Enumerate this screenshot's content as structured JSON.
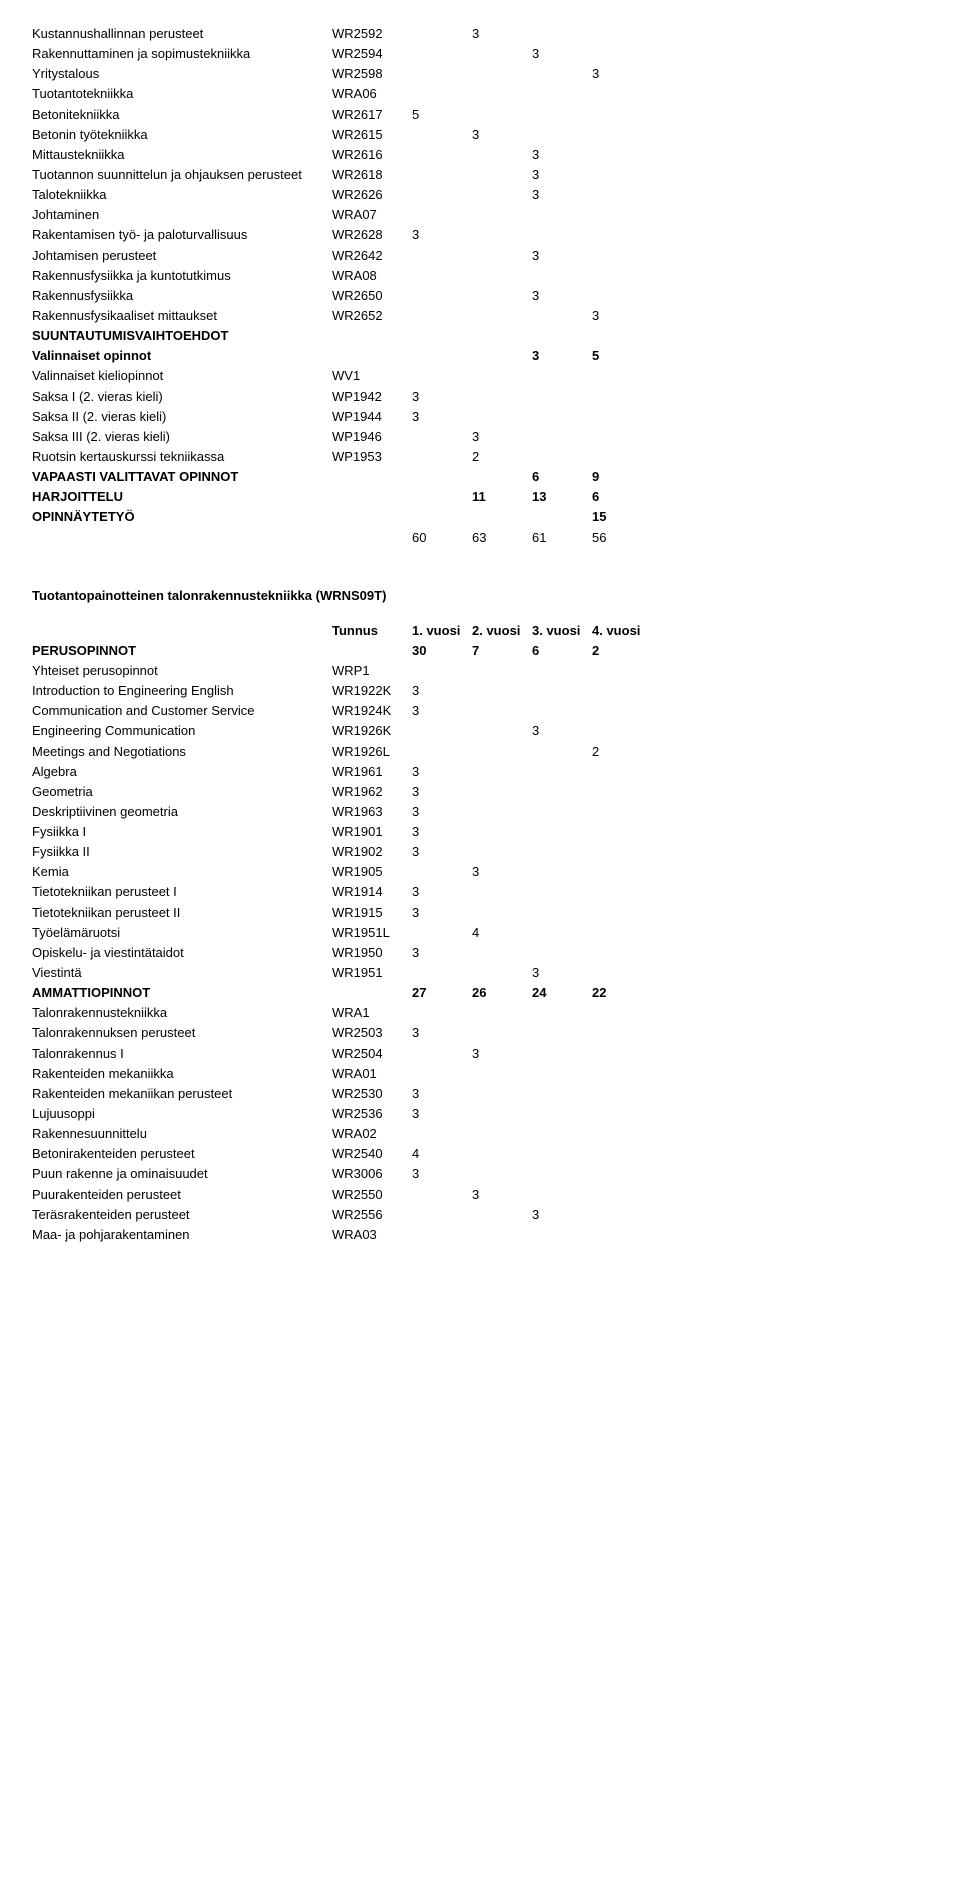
{
  "table1": {
    "rows": [
      {
        "label": "Kustannushallinnan perusteet",
        "code": "WR2592",
        "v1": "",
        "v2": "3",
        "v3": "",
        "v4": "",
        "bold": false
      },
      {
        "label": "Rakennuttaminen ja sopimustekniikka",
        "code": "WR2594",
        "v1": "",
        "v2": "",
        "v3": "3",
        "v4": "",
        "bold": false
      },
      {
        "label": "Yritystalous",
        "code": "WR2598",
        "v1": "",
        "v2": "",
        "v3": "",
        "v4": "3",
        "bold": false
      },
      {
        "label": "Tuotantotekniikka",
        "code": "WRA06",
        "v1": "",
        "v2": "",
        "v3": "",
        "v4": "",
        "bold": false
      },
      {
        "label": "Betonitekniikka",
        "code": "WR2617",
        "v1": "5",
        "v2": "",
        "v3": "",
        "v4": "",
        "bold": false
      },
      {
        "label": "Betonin työtekniikka",
        "code": "WR2615",
        "v1": "",
        "v2": "3",
        "v3": "",
        "v4": "",
        "bold": false
      },
      {
        "label": "Mittaustekniikka",
        "code": "WR2616",
        "v1": "",
        "v2": "",
        "v3": "3",
        "v4": "",
        "bold": false
      },
      {
        "label": "Tuotannon suunnittelun ja ohjauksen perusteet",
        "code": "WR2618",
        "v1": "",
        "v2": "",
        "v3": "3",
        "v4": "",
        "bold": false
      },
      {
        "label": "Talotekniikka",
        "code": "WR2626",
        "v1": "",
        "v2": "",
        "v3": "3",
        "v4": "",
        "bold": false
      },
      {
        "label": "Johtaminen",
        "code": "WRA07",
        "v1": "",
        "v2": "",
        "v3": "",
        "v4": "",
        "bold": false
      },
      {
        "label": "Rakentamisen työ- ja paloturvallisuus",
        "code": "WR2628",
        "v1": "3",
        "v2": "",
        "v3": "",
        "v4": "",
        "bold": false
      },
      {
        "label": "Johtamisen perusteet",
        "code": "WR2642",
        "v1": "",
        "v2": "",
        "v3": "3",
        "v4": "",
        "bold": false
      },
      {
        "label": "Rakennusfysiikka ja kuntotutkimus",
        "code": "WRA08",
        "v1": "",
        "v2": "",
        "v3": "",
        "v4": "",
        "bold": false
      },
      {
        "label": "Rakennusfysiikka",
        "code": "WR2650",
        "v1": "",
        "v2": "",
        "v3": "3",
        "v4": "",
        "bold": false
      },
      {
        "label": "Rakennusfysikaaliset mittaukset",
        "code": "WR2652",
        "v1": "",
        "v2": "",
        "v3": "",
        "v4": "3",
        "bold": false
      },
      {
        "label": "SUUNTAUTUMISVAIHTOEHDOT",
        "code": "",
        "v1": "",
        "v2": "",
        "v3": "",
        "v4": "",
        "bold": true
      },
      {
        "label": "Valinnaiset opinnot",
        "code": "",
        "v1": "",
        "v2": "",
        "v3": "3",
        "v4": "5",
        "bold": true
      },
      {
        "label": "Valinnaiset kieliopinnot",
        "code": "WV1",
        "v1": "",
        "v2": "",
        "v3": "",
        "v4": "",
        "bold": false
      },
      {
        "label": "Saksa I (2. vieras kieli)",
        "code": "WP1942",
        "v1": "3",
        "v2": "",
        "v3": "",
        "v4": "",
        "bold": false
      },
      {
        "label": "Saksa II (2. vieras kieli)",
        "code": "WP1944",
        "v1": "3",
        "v2": "",
        "v3": "",
        "v4": "",
        "bold": false
      },
      {
        "label": "Saksa III (2. vieras kieli)",
        "code": "WP1946",
        "v1": "",
        "v2": "3",
        "v3": "",
        "v4": "",
        "bold": false
      },
      {
        "label": "Ruotsin kertauskurssi tekniikassa",
        "code": "WP1953",
        "v1": "",
        "v2": "2",
        "v3": "",
        "v4": "",
        "bold": false
      },
      {
        "label": "VAPAASTI VALITTAVAT OPINNOT",
        "code": "",
        "v1": "",
        "v2": "",
        "v3": "6",
        "v4": "9",
        "bold": true
      },
      {
        "label": "HARJOITTELU",
        "code": "",
        "v1": "",
        "v2": "11",
        "v3": "13",
        "v4": "6",
        "bold": true
      },
      {
        "label": "OPINNÄYTETYÖ",
        "code": "",
        "v1": "",
        "v2": "",
        "v3": "",
        "v4": "15",
        "bold": true
      }
    ],
    "totals": {
      "v1": "60",
      "v2": "63",
      "v3": "61",
      "v4": "56"
    }
  },
  "section2": {
    "title": "Tuotantopainotteinen talonrakennustekniikka (WRNS09T)",
    "header": {
      "code": "Tunnus",
      "v1": "1. vuosi",
      "v2": "2. vuosi",
      "v3": "3. vuosi",
      "v4": "4. vuosi"
    },
    "rows": [
      {
        "label": "PERUSOPINNOT",
        "code": "",
        "v1": "30",
        "v2": "7",
        "v3": "6",
        "v4": "2",
        "bold": true
      },
      {
        "label": "Yhteiset perusopinnot",
        "code": "WRP1",
        "v1": "",
        "v2": "",
        "v3": "",
        "v4": "",
        "bold": false
      },
      {
        "label": "Introduction to Engineering English",
        "code": "WR1922K",
        "v1": "3",
        "v2": "",
        "v3": "",
        "v4": "",
        "bold": false
      },
      {
        "label": "Communication and Customer Service",
        "code": "WR1924K",
        "v1": "3",
        "v2": "",
        "v3": "",
        "v4": "",
        "bold": false
      },
      {
        "label": "Engineering Communication",
        "code": "WR1926K",
        "v1": "",
        "v2": "",
        "v3": "3",
        "v4": "",
        "bold": false
      },
      {
        "label": "Meetings and Negotiations",
        "code": "WR1926L",
        "v1": "",
        "v2": "",
        "v3": "",
        "v4": "2",
        "bold": false
      },
      {
        "label": "Algebra",
        "code": "WR1961",
        "v1": "3",
        "v2": "",
        "v3": "",
        "v4": "",
        "bold": false
      },
      {
        "label": "Geometria",
        "code": "WR1962",
        "v1": "3",
        "v2": "",
        "v3": "",
        "v4": "",
        "bold": false
      },
      {
        "label": "Deskriptiivinen geometria",
        "code": "WR1963",
        "v1": "3",
        "v2": "",
        "v3": "",
        "v4": "",
        "bold": false
      },
      {
        "label": "Fysiikka I",
        "code": "WR1901",
        "v1": "3",
        "v2": "",
        "v3": "",
        "v4": "",
        "bold": false
      },
      {
        "label": "Fysiikka II",
        "code": "WR1902",
        "v1": "3",
        "v2": "",
        "v3": "",
        "v4": "",
        "bold": false
      },
      {
        "label": "Kemia",
        "code": "WR1905",
        "v1": "",
        "v2": "3",
        "v3": "",
        "v4": "",
        "bold": false
      },
      {
        "label": "Tietotekniikan perusteet I",
        "code": "WR1914",
        "v1": "3",
        "v2": "",
        "v3": "",
        "v4": "",
        "bold": false
      },
      {
        "label": "Tietotekniikan perusteet II",
        "code": "WR1915",
        "v1": "3",
        "v2": "",
        "v3": "",
        "v4": "",
        "bold": false
      },
      {
        "label": "Työelämäruotsi",
        "code": "WR1951L",
        "v1": "",
        "v2": "4",
        "v3": "",
        "v4": "",
        "bold": false
      },
      {
        "label": "Opiskelu- ja viestintätaidot",
        "code": "WR1950",
        "v1": "3",
        "v2": "",
        "v3": "",
        "v4": "",
        "bold": false
      },
      {
        "label": "Viestintä",
        "code": "WR1951",
        "v1": "",
        "v2": "",
        "v3": "3",
        "v4": "",
        "bold": false
      },
      {
        "label": "AMMATTIOPINNOT",
        "code": "",
        "v1": "27",
        "v2": "26",
        "v3": "24",
        "v4": "22",
        "bold": true
      },
      {
        "label": "Talonrakennustekniikka",
        "code": "WRA1",
        "v1": "",
        "v2": "",
        "v3": "",
        "v4": "",
        "bold": false
      },
      {
        "label": "Talonrakennuksen perusteet",
        "code": "WR2503",
        "v1": "3",
        "v2": "",
        "v3": "",
        "v4": "",
        "bold": false
      },
      {
        "label": "Talonrakennus I",
        "code": "WR2504",
        "v1": "",
        "v2": "3",
        "v3": "",
        "v4": "",
        "bold": false
      },
      {
        "label": "Rakenteiden mekaniikka",
        "code": "WRA01",
        "v1": "",
        "v2": "",
        "v3": "",
        "v4": "",
        "bold": false
      },
      {
        "label": "Rakenteiden mekaniikan perusteet",
        "code": "WR2530",
        "v1": "3",
        "v2": "",
        "v3": "",
        "v4": "",
        "bold": false
      },
      {
        "label": "Lujuusoppi",
        "code": "WR2536",
        "v1": "3",
        "v2": "",
        "v3": "",
        "v4": "",
        "bold": false
      },
      {
        "label": "Rakennesuunnittelu",
        "code": "WRA02",
        "v1": "",
        "v2": "",
        "v3": "",
        "v4": "",
        "bold": false
      },
      {
        "label": "Betonirakenteiden perusteet",
        "code": "WR2540",
        "v1": "4",
        "v2": "",
        "v3": "",
        "v4": "",
        "bold": false
      },
      {
        "label": "Puun rakenne ja ominaisuudet",
        "code": "WR3006",
        "v1": "3",
        "v2": "",
        "v3": "",
        "v4": "",
        "bold": false
      },
      {
        "label": "Puurakenteiden perusteet",
        "code": "WR2550",
        "v1": "",
        "v2": "3",
        "v3": "",
        "v4": "",
        "bold": false
      },
      {
        "label": "Teräsrakenteiden perusteet",
        "code": "WR2556",
        "v1": "",
        "v2": "",
        "v3": "3",
        "v4": "",
        "bold": false
      },
      {
        "label": "Maa- ja pohjarakentaminen",
        "code": "WRA03",
        "v1": "",
        "v2": "",
        "v3": "",
        "v4": "",
        "bold": false
      }
    ]
  }
}
